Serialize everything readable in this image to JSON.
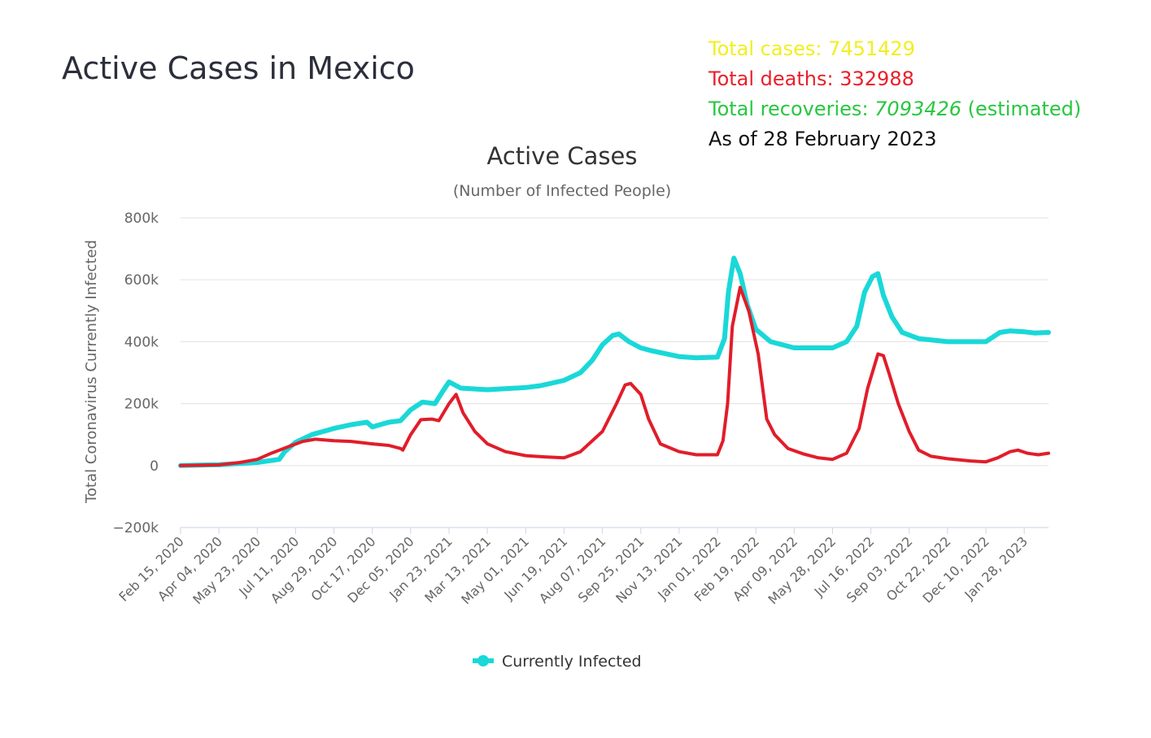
{
  "page": {
    "title": "Active Cases in Mexico"
  },
  "stats": {
    "cases_label": "Total cases: ",
    "cases_value": "7451429",
    "deaths_label": "Total deaths: ",
    "deaths_value": "332988",
    "recoveries_label": "Total recoveries: ",
    "recoveries_value": "7093426",
    "recoveries_note": " (estimated)",
    "as_of": "As of 28 February 2023",
    "colors": {
      "cases": "#f2ef1d",
      "deaths": "#ea1f2a",
      "recoveries": "#27c740"
    }
  },
  "chart_data": {
    "type": "line",
    "title": "Active Cases",
    "subtitle": "(Number of Infected People)",
    "ylabel": "Total Coronavirus Currently Infected",
    "xlabel": "",
    "ylim": [
      -200000,
      800000
    ],
    "yticks": [
      -200000,
      0,
      200000,
      400000,
      600000,
      800000
    ],
    "ytick_labels": [
      "−200k",
      "0",
      "200k",
      "400k",
      "600k",
      "800k"
    ],
    "grid": true,
    "x_start": "2020-02-15",
    "x_end": "2023-02-28",
    "xtick_labels": [
      "Feb 15, 2020",
      "Apr 04, 2020",
      "May 23, 2020",
      "Jul 11, 2020",
      "Aug 29, 2020",
      "Oct 17, 2020",
      "Dec 05, 2020",
      "Jan 23, 2021",
      "Mar 13, 2021",
      "May 01, 2021",
      "Jun 19, 2021",
      "Aug 07, 2021",
      "Sep 25, 2021",
      "Nov 13, 2021",
      "Jan 01, 2022",
      "Feb 19, 2022",
      "Apr 09, 2022",
      "May 28, 2022",
      "Jul 16, 2022",
      "Sep 03, 2022",
      "Oct 22, 2022",
      "Dec 10, 2022",
      "Jan 28, 2023"
    ],
    "legend": {
      "position": "bottom",
      "entries": [
        "Currently Infected"
      ]
    },
    "series": [
      {
        "name": "Currently Infected",
        "color": "#1ad8d8",
        "points": [
          [
            "2020-02-15",
            0
          ],
          [
            "2020-04-04",
            3000
          ],
          [
            "2020-05-23",
            10000
          ],
          [
            "2020-06-20",
            20000
          ],
          [
            "2020-06-27",
            45000
          ],
          [
            "2020-07-11",
            75000
          ],
          [
            "2020-08-01",
            100000
          ],
          [
            "2020-08-29",
            120000
          ],
          [
            "2020-09-20",
            132000
          ],
          [
            "2020-10-10",
            140000
          ],
          [
            "2020-10-17",
            125000
          ],
          [
            "2020-11-07",
            140000
          ],
          [
            "2020-11-22",
            145000
          ],
          [
            "2020-12-05",
            180000
          ],
          [
            "2020-12-20",
            205000
          ],
          [
            "2021-01-05",
            200000
          ],
          [
            "2021-01-15",
            240000
          ],
          [
            "2021-01-23",
            270000
          ],
          [
            "2021-02-07",
            250000
          ],
          [
            "2021-03-13",
            245000
          ],
          [
            "2021-05-01",
            252000
          ],
          [
            "2021-05-20",
            258000
          ],
          [
            "2021-06-19",
            275000
          ],
          [
            "2021-07-10",
            300000
          ],
          [
            "2021-07-25",
            340000
          ],
          [
            "2021-08-07",
            390000
          ],
          [
            "2021-08-20",
            420000
          ],
          [
            "2021-08-28",
            425000
          ],
          [
            "2021-09-10",
            400000
          ],
          [
            "2021-09-25",
            380000
          ],
          [
            "2021-10-10",
            370000
          ],
          [
            "2021-11-13",
            352000
          ],
          [
            "2021-12-05",
            348000
          ],
          [
            "2022-01-01",
            350000
          ],
          [
            "2022-01-10",
            410000
          ],
          [
            "2022-01-15",
            560000
          ],
          [
            "2022-01-22",
            670000
          ],
          [
            "2022-01-30",
            620000
          ],
          [
            "2022-02-08",
            520000
          ],
          [
            "2022-02-19",
            440000
          ],
          [
            "2022-03-10",
            400000
          ],
          [
            "2022-04-09",
            380000
          ],
          [
            "2022-05-28",
            380000
          ],
          [
            "2022-06-15",
            400000
          ],
          [
            "2022-06-28",
            450000
          ],
          [
            "2022-07-08",
            560000
          ],
          [
            "2022-07-18",
            610000
          ],
          [
            "2022-07-25",
            620000
          ],
          [
            "2022-08-01",
            550000
          ],
          [
            "2022-08-12",
            480000
          ],
          [
            "2022-08-25",
            430000
          ],
          [
            "2022-09-15",
            410000
          ],
          [
            "2022-10-22",
            400000
          ],
          [
            "2022-12-10",
            400000
          ],
          [
            "2022-12-28",
            430000
          ],
          [
            "2023-01-10",
            435000
          ],
          [
            "2023-01-28",
            432000
          ],
          [
            "2023-02-10",
            428000
          ],
          [
            "2023-02-28",
            430000
          ]
        ]
      },
      {
        "name": "",
        "color": "#e11d2a",
        "points": [
          [
            "2020-02-15",
            0
          ],
          [
            "2020-04-04",
            2000
          ],
          [
            "2020-05-01",
            10000
          ],
          [
            "2020-05-23",
            20000
          ],
          [
            "2020-06-10",
            40000
          ],
          [
            "2020-07-01",
            60000
          ],
          [
            "2020-07-20",
            78000
          ],
          [
            "2020-08-05",
            85000
          ],
          [
            "2020-08-29",
            80000
          ],
          [
            "2020-09-20",
            78000
          ],
          [
            "2020-10-17",
            70000
          ],
          [
            "2020-11-07",
            65000
          ],
          [
            "2020-11-22",
            55000
          ],
          [
            "2020-11-25",
            50000
          ],
          [
            "2020-12-05",
            100000
          ],
          [
            "2020-12-18",
            148000
          ],
          [
            "2021-01-01",
            150000
          ],
          [
            "2021-01-10",
            145000
          ],
          [
            "2021-01-23",
            200000
          ],
          [
            "2021-02-01",
            230000
          ],
          [
            "2021-02-10",
            170000
          ],
          [
            "2021-02-25",
            110000
          ],
          [
            "2021-03-13",
            70000
          ],
          [
            "2021-04-05",
            45000
          ],
          [
            "2021-05-01",
            32000
          ],
          [
            "2021-05-25",
            28000
          ],
          [
            "2021-06-19",
            25000
          ],
          [
            "2021-07-10",
            45000
          ],
          [
            "2021-08-07",
            110000
          ],
          [
            "2021-08-25",
            200000
          ],
          [
            "2021-09-05",
            260000
          ],
          [
            "2021-09-12",
            265000
          ],
          [
            "2021-09-25",
            230000
          ],
          [
            "2021-10-05",
            150000
          ],
          [
            "2021-10-20",
            70000
          ],
          [
            "2021-11-13",
            45000
          ],
          [
            "2021-12-05",
            35000
          ],
          [
            "2022-01-01",
            35000
          ],
          [
            "2022-01-08",
            80000
          ],
          [
            "2022-01-14",
            200000
          ],
          [
            "2022-01-20",
            450000
          ],
          [
            "2022-01-30",
            575000
          ],
          [
            "2022-02-10",
            500000
          ],
          [
            "2022-02-22",
            360000
          ],
          [
            "2022-03-05",
            150000
          ],
          [
            "2022-03-15",
            100000
          ],
          [
            "2022-04-01",
            55000
          ],
          [
            "2022-04-20",
            38000
          ],
          [
            "2022-05-10",
            25000
          ],
          [
            "2022-05-28",
            20000
          ],
          [
            "2022-06-15",
            40000
          ],
          [
            "2022-07-01",
            120000
          ],
          [
            "2022-07-12",
            250000
          ],
          [
            "2022-07-25",
            360000
          ],
          [
            "2022-08-01",
            355000
          ],
          [
            "2022-08-08",
            300000
          ],
          [
            "2022-08-20",
            200000
          ],
          [
            "2022-09-03",
            110000
          ],
          [
            "2022-09-15",
            50000
          ],
          [
            "2022-10-01",
            30000
          ],
          [
            "2022-10-22",
            22000
          ],
          [
            "2022-11-20",
            15000
          ],
          [
            "2022-12-10",
            12000
          ],
          [
            "2022-12-25",
            25000
          ],
          [
            "2023-01-10",
            45000
          ],
          [
            "2023-01-20",
            50000
          ],
          [
            "2023-02-01",
            40000
          ],
          [
            "2023-02-15",
            35000
          ],
          [
            "2023-02-28",
            40000
          ]
        ]
      }
    ]
  }
}
